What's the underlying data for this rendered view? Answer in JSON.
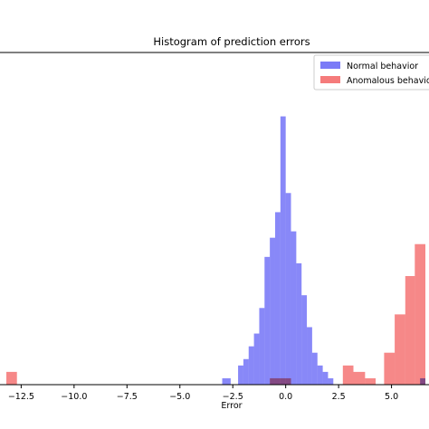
{
  "chart_data": {
    "type": "histogram",
    "title": "Histogram of prediction errors",
    "xlabel": "Error",
    "ylabel": "",
    "xlim": [
      -13.5,
      6.6
    ],
    "ylim": [
      0,
      52
    ],
    "xticks": [
      -12.5,
      -10.0,
      -7.5,
      -5.0,
      -2.5,
      0.0,
      2.5,
      5.0
    ],
    "xtick_labels": [
      "−12.5",
      "−10.0",
      "−7.5",
      "−5.0",
      "−2.5",
      "0.0",
      "2.5",
      "5.0"
    ],
    "legend": {
      "position": "top-right"
    },
    "series": [
      {
        "name": "Normal behavior",
        "color": "#7b7bf7",
        "bins": [
          {
            "x0": -3.0,
            "x1": -2.6,
            "count": 1
          },
          {
            "x0": -2.25,
            "x1": -2.0,
            "count": 3
          },
          {
            "x0": -2.0,
            "x1": -1.75,
            "count": 4
          },
          {
            "x0": -1.75,
            "x1": -1.5,
            "count": 6
          },
          {
            "x0": -1.5,
            "x1": -1.25,
            "count": 8
          },
          {
            "x0": -1.25,
            "x1": -1.0,
            "count": 12
          },
          {
            "x0": -1.0,
            "x1": -0.75,
            "count": 20
          },
          {
            "x0": -0.75,
            "x1": -0.5,
            "count": 23
          },
          {
            "x0": -0.5,
            "x1": -0.25,
            "count": 27
          },
          {
            "x0": -0.25,
            "x1": 0.0,
            "count": 42
          },
          {
            "x0": 0.0,
            "x1": 0.25,
            "count": 30
          },
          {
            "x0": 0.25,
            "x1": 0.5,
            "count": 24
          },
          {
            "x0": 0.5,
            "x1": 0.75,
            "count": 19
          },
          {
            "x0": 0.75,
            "x1": 1.0,
            "count": 14
          },
          {
            "x0": 1.0,
            "x1": 1.25,
            "count": 9
          },
          {
            "x0": 1.25,
            "x1": 1.5,
            "count": 5
          },
          {
            "x0": 1.5,
            "x1": 1.75,
            "count": 3
          },
          {
            "x0": 1.75,
            "x1": 2.0,
            "count": 2
          },
          {
            "x0": 2.0,
            "x1": 2.25,
            "count": 1
          },
          {
            "x0": 6.35,
            "x1": 6.6,
            "count": 1
          }
        ]
      },
      {
        "name": "Anomalous behavior",
        "color": "#f57b7b",
        "bins": [
          {
            "x0": -13.2,
            "x1": -12.7,
            "count": 2
          },
          {
            "x0": -0.75,
            "x1": 0.25,
            "count": 1
          },
          {
            "x0": 2.7,
            "x1": 3.2,
            "count": 3
          },
          {
            "x0": 3.2,
            "x1": 3.75,
            "count": 2
          },
          {
            "x0": 3.75,
            "x1": 4.25,
            "count": 1
          },
          {
            "x0": 4.65,
            "x1": 5.15,
            "count": 5
          },
          {
            "x0": 5.15,
            "x1": 5.65,
            "count": 11
          },
          {
            "x0": 5.65,
            "x1": 6.1,
            "count": 17
          },
          {
            "x0": 6.1,
            "x1": 6.6,
            "count": 22
          }
        ]
      }
    ]
  }
}
